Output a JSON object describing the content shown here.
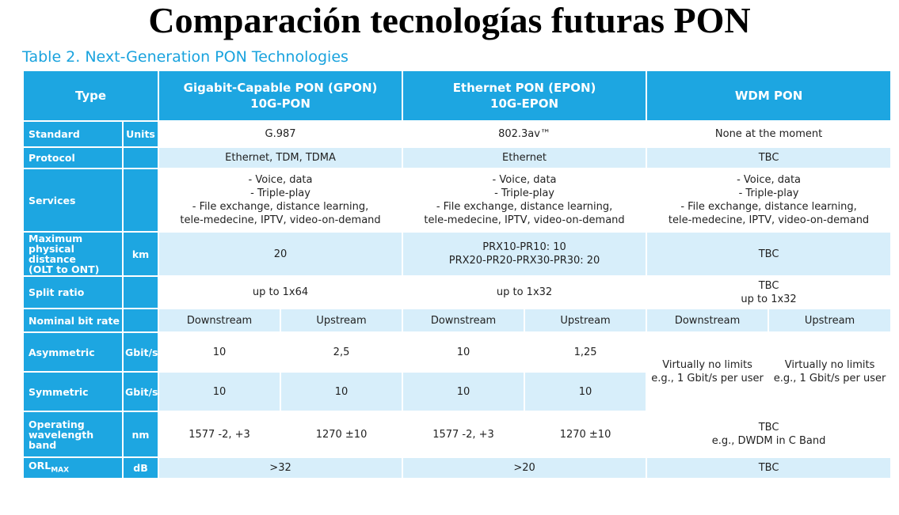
{
  "title": "Comparación tecnologías futuras PON",
  "caption": "Table 2. Next-Generation PON Technologies",
  "headers": {
    "type": "Type",
    "gpon_line1": "Gigabit-Capable PON (GPON)",
    "gpon_line2": "10G-PON",
    "epon_line1": "Ethernet PON (EPON)",
    "epon_line2": "10G-EPON",
    "wdm": "WDM PON"
  },
  "rows": {
    "standard": {
      "label": "Standard",
      "unit": "Units",
      "gpon": "G.987",
      "epon": "802.3av™",
      "wdm": "None at the moment"
    },
    "protocol": {
      "label": "Protocol",
      "gpon": "Ethernet, TDM, TDMA",
      "epon": "Ethernet",
      "wdm": "TBC"
    },
    "services": {
      "label": "Services",
      "lines": [
        "- Voice, data",
        "- Triple-play",
        "- File exchange, distance learning,",
        "tele-medecine, IPTV, video-on-demand"
      ]
    },
    "distance": {
      "label_lines": [
        "Maximum physical",
        "distance",
        "(OLT to ONT)"
      ],
      "unit": "km",
      "gpon": "20",
      "epon_line1": "PRX10-PR10: 10",
      "epon_line2": "PRX20-PR20-PRX30-PR30: 20",
      "wdm": "TBC"
    },
    "split": {
      "label": "Split ratio",
      "gpon": "up to 1x64",
      "epon": "up to 1x32",
      "wdm_line1": "TBC",
      "wdm_line2": "up to 1x32"
    },
    "bitrate": {
      "label": "Nominal bit rate",
      "down": "Downstream",
      "up": "Upstream"
    },
    "asymmetric": {
      "label": "Asymmetric",
      "unit": "Gbit/s",
      "gpon_down": "10",
      "gpon_up": "2,5",
      "epon_down": "10",
      "epon_up": "1,25"
    },
    "symmetric": {
      "label": "Symmetric",
      "unit": "Gbit/s",
      "gpon_down": "10",
      "gpon_up": "10",
      "epon_down": "10",
      "epon_up": "10"
    },
    "wdm_rate": {
      "line1": "Virtually no limits",
      "line2": "e.g., 1 Gbit/s per user"
    },
    "wavelength": {
      "label_lines": [
        "Operating",
        "wavelength",
        "band"
      ],
      "unit": "nm",
      "gpon_down": "1577 -2, +3",
      "gpon_up": "1270 ±10",
      "epon_down": "1577 -2, +3",
      "epon_up": "1270 ±10",
      "wdm_line1": "TBC",
      "wdm_line2": "e.g., DWDM in C Band"
    },
    "orl": {
      "label_main": "ORL",
      "label_sub": "MAX",
      "unit": "dB",
      "gpon": ">32",
      "epon": ">20",
      "wdm": "TBC"
    }
  }
}
